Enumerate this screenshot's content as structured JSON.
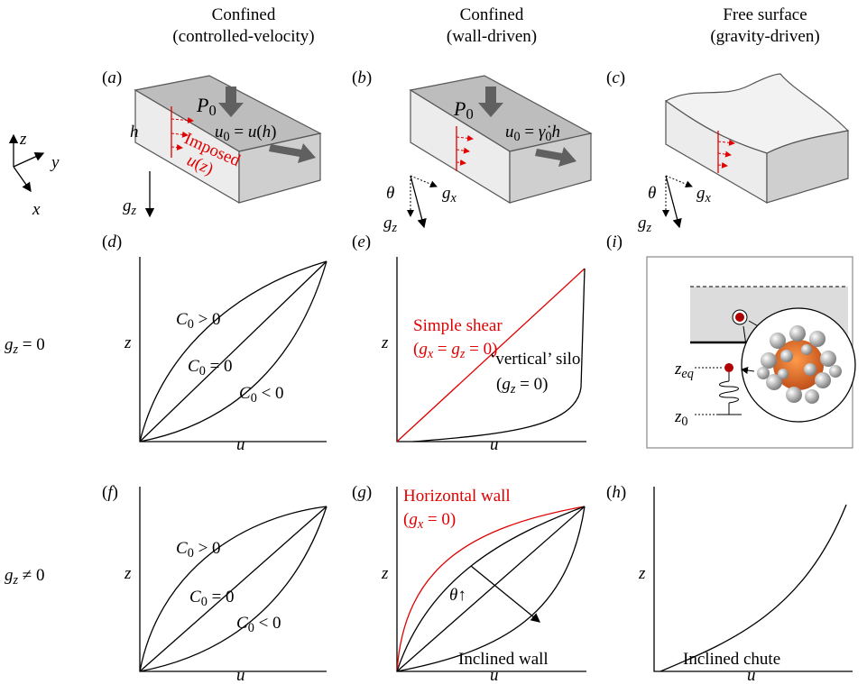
{
  "columns": [
    {
      "title": "Confined",
      "subtitle": "(controlled-velocity)"
    },
    {
      "title": "Confined",
      "subtitle": "(wall-driven)"
    },
    {
      "title": "Free surface",
      "subtitle": "(gravity-driven)"
    }
  ],
  "rows": [
    [
      {
        "i": "g"
      },
      {
        "s": "z"
      },
      {
        "t": " = 0"
      }
    ],
    [
      {
        "i": "g"
      },
      {
        "s": "z"
      },
      {
        "t": " ≠ 0"
      }
    ]
  ],
  "triad": {
    "z": "z",
    "y": "y",
    "x": "x"
  },
  "panels": {
    "a": {
      "tag": [
        {
          "t": "("
        },
        {
          "i": "a"
        },
        {
          "t": ")"
        }
      ],
      "p": [
        {
          "i": "P"
        },
        {
          "r": "0"
        }
      ],
      "h": [
        {
          "i": "h"
        }
      ],
      "u": [
        {
          "i": "u"
        },
        {
          "r": "0"
        },
        {
          "t": " = "
        },
        {
          "i": "u"
        },
        {
          "t": "("
        },
        {
          "i": "h"
        },
        {
          "t": ")"
        }
      ],
      "imposed": "Imposed",
      "uz": [
        {
          "i": "u"
        },
        {
          "t": "("
        },
        {
          "i": "z"
        },
        {
          "t": ")"
        }
      ],
      "g": [
        {
          "i": "g"
        },
        {
          "s": "z"
        }
      ]
    },
    "b": {
      "tag": [
        {
          "t": "("
        },
        {
          "i": "b"
        },
        {
          "t": ")"
        }
      ],
      "p": [
        {
          "i": "P"
        },
        {
          "r": "0"
        }
      ],
      "u": [
        {
          "i": "u"
        },
        {
          "r": "0"
        },
        {
          "t": " = "
        },
        {
          "i": "γ̇"
        },
        {
          "r": "0"
        },
        {
          "i": "h"
        }
      ],
      "theta": [
        {
          "i": "θ"
        }
      ],
      "gx": [
        {
          "i": "g"
        },
        {
          "s": "x"
        }
      ],
      "gz": [
        {
          "i": "g"
        },
        {
          "s": "z"
        }
      ]
    },
    "c": {
      "tag": [
        {
          "t": "("
        },
        {
          "i": "c"
        },
        {
          "t": ")"
        }
      ],
      "theta": [
        {
          "i": "θ"
        }
      ],
      "gx": [
        {
          "i": "g"
        },
        {
          "s": "x"
        }
      ],
      "gz": [
        {
          "i": "g"
        },
        {
          "s": "z"
        }
      ]
    },
    "d": {
      "tag": [
        {
          "t": "("
        },
        {
          "i": "d"
        },
        {
          "t": ")"
        }
      ],
      "pos": [
        {
          "i": "C"
        },
        {
          "r": "0"
        },
        {
          "t": " > 0"
        }
      ],
      "zero": [
        {
          "i": "C"
        },
        {
          "r": "0"
        },
        {
          "t": " = 0"
        }
      ],
      "neg": [
        {
          "i": "C"
        },
        {
          "r": "0"
        },
        {
          "t": " < 0"
        }
      ],
      "z": [
        {
          "i": "z"
        }
      ],
      "u": [
        {
          "i": "u"
        }
      ]
    },
    "e": {
      "tag": [
        {
          "t": "("
        },
        {
          "i": "e"
        },
        {
          "t": ")"
        }
      ],
      "shear": "Simple shear",
      "shear_cond": [
        {
          "t": "("
        },
        {
          "i": "g"
        },
        {
          "s": "x"
        },
        {
          "t": " = "
        },
        {
          "i": "g"
        },
        {
          "s": "z"
        },
        {
          "t": " = 0)"
        }
      ],
      "silo": "‘vertical’ silo",
      "silo_cond": [
        {
          "t": "("
        },
        {
          "i": "g"
        },
        {
          "s": "z"
        },
        {
          "t": " = 0)"
        }
      ],
      "z": [
        {
          "i": "z"
        }
      ],
      "u": [
        {
          "i": "u"
        }
      ]
    },
    "i": {
      "tag": [
        {
          "t": "("
        },
        {
          "i": "i"
        },
        {
          "t": ")"
        }
      ],
      "zeq": [
        {
          "i": "z"
        },
        {
          "s": "eq"
        }
      ],
      "z0": [
        {
          "i": "z"
        },
        {
          "r": "0"
        }
      ]
    },
    "f": {
      "tag": [
        {
          "t": "("
        },
        {
          "i": "f"
        },
        {
          "t": ")"
        }
      ],
      "pos": [
        {
          "i": "C"
        },
        {
          "r": "0"
        },
        {
          "t": " > 0"
        }
      ],
      "zero": [
        {
          "i": "C"
        },
        {
          "r": "0"
        },
        {
          "t": " = 0"
        }
      ],
      "neg": [
        {
          "i": "C"
        },
        {
          "r": "0"
        },
        {
          "t": " < 0"
        }
      ],
      "z": [
        {
          "i": "z"
        }
      ],
      "u": [
        {
          "i": "u"
        }
      ]
    },
    "g": {
      "tag": [
        {
          "t": "("
        },
        {
          "i": "g"
        },
        {
          "t": ")"
        }
      ],
      "wall": "Horizontal wall",
      "wall_cond": [
        {
          "t": "("
        },
        {
          "i": "g"
        },
        {
          "s": "x"
        },
        {
          "t": " = 0)"
        }
      ],
      "theta": [
        {
          "i": "θ"
        },
        {
          "t": "↑"
        }
      ],
      "inclined": "Inclined wall",
      "z": [
        {
          "i": "z"
        }
      ],
      "u": [
        {
          "i": "u"
        }
      ]
    },
    "h": {
      "tag": [
        {
          "t": "("
        },
        {
          "i": "h"
        },
        {
          "t": ")"
        }
      ],
      "chute": "Inclined chute",
      "z": [
        {
          "i": "z"
        }
      ],
      "u": [
        {
          "i": "u"
        }
      ]
    }
  }
}
